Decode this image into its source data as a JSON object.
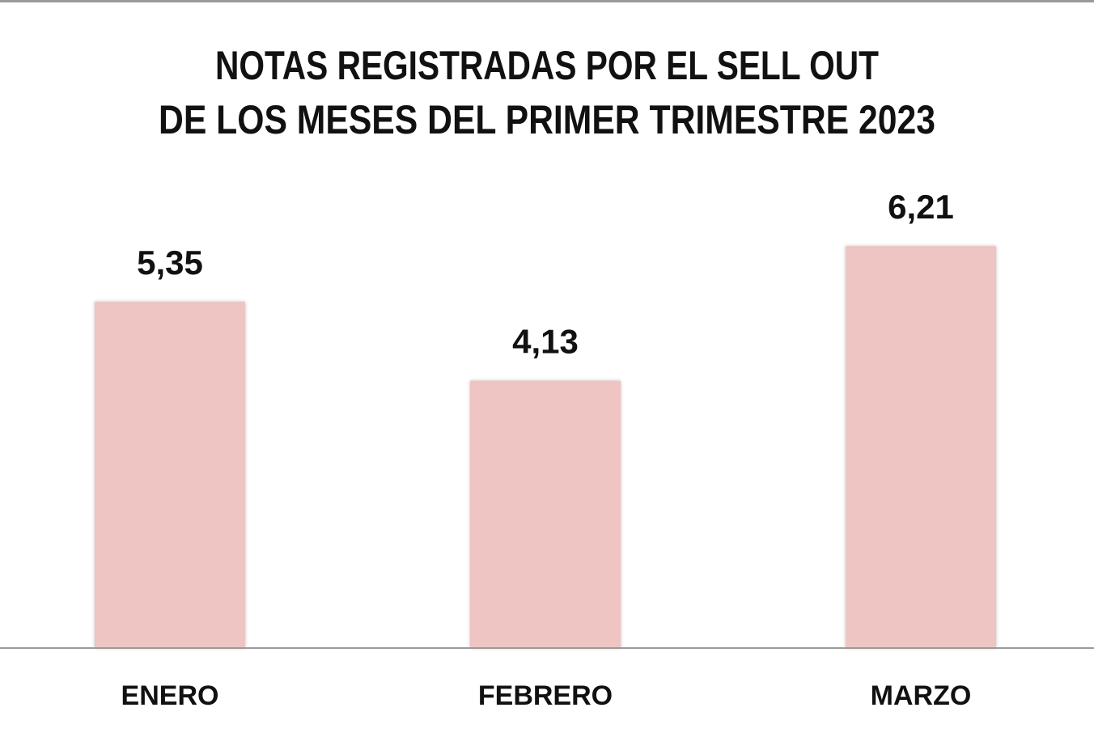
{
  "chart_data": {
    "type": "bar",
    "title_lines": [
      "NOTAS REGISTRADAS POR EL SELL OUT",
      "DE LOS MESES DEL PRIMER TRIMESTRE 2023"
    ],
    "categories": [
      "ENERO",
      "FEBRERO",
      "MARZO"
    ],
    "values": [
      5.35,
      4.13,
      6.21
    ],
    "value_labels": [
      "5,35",
      "4,13",
      "6,21"
    ],
    "xlabel": "",
    "ylabel": "",
    "ylim": [
      0,
      7
    ],
    "grid": false,
    "legend": "none",
    "colors": {
      "bar": "#eec5c2",
      "baseline": "#9a9a9a",
      "text": "#111111"
    }
  }
}
